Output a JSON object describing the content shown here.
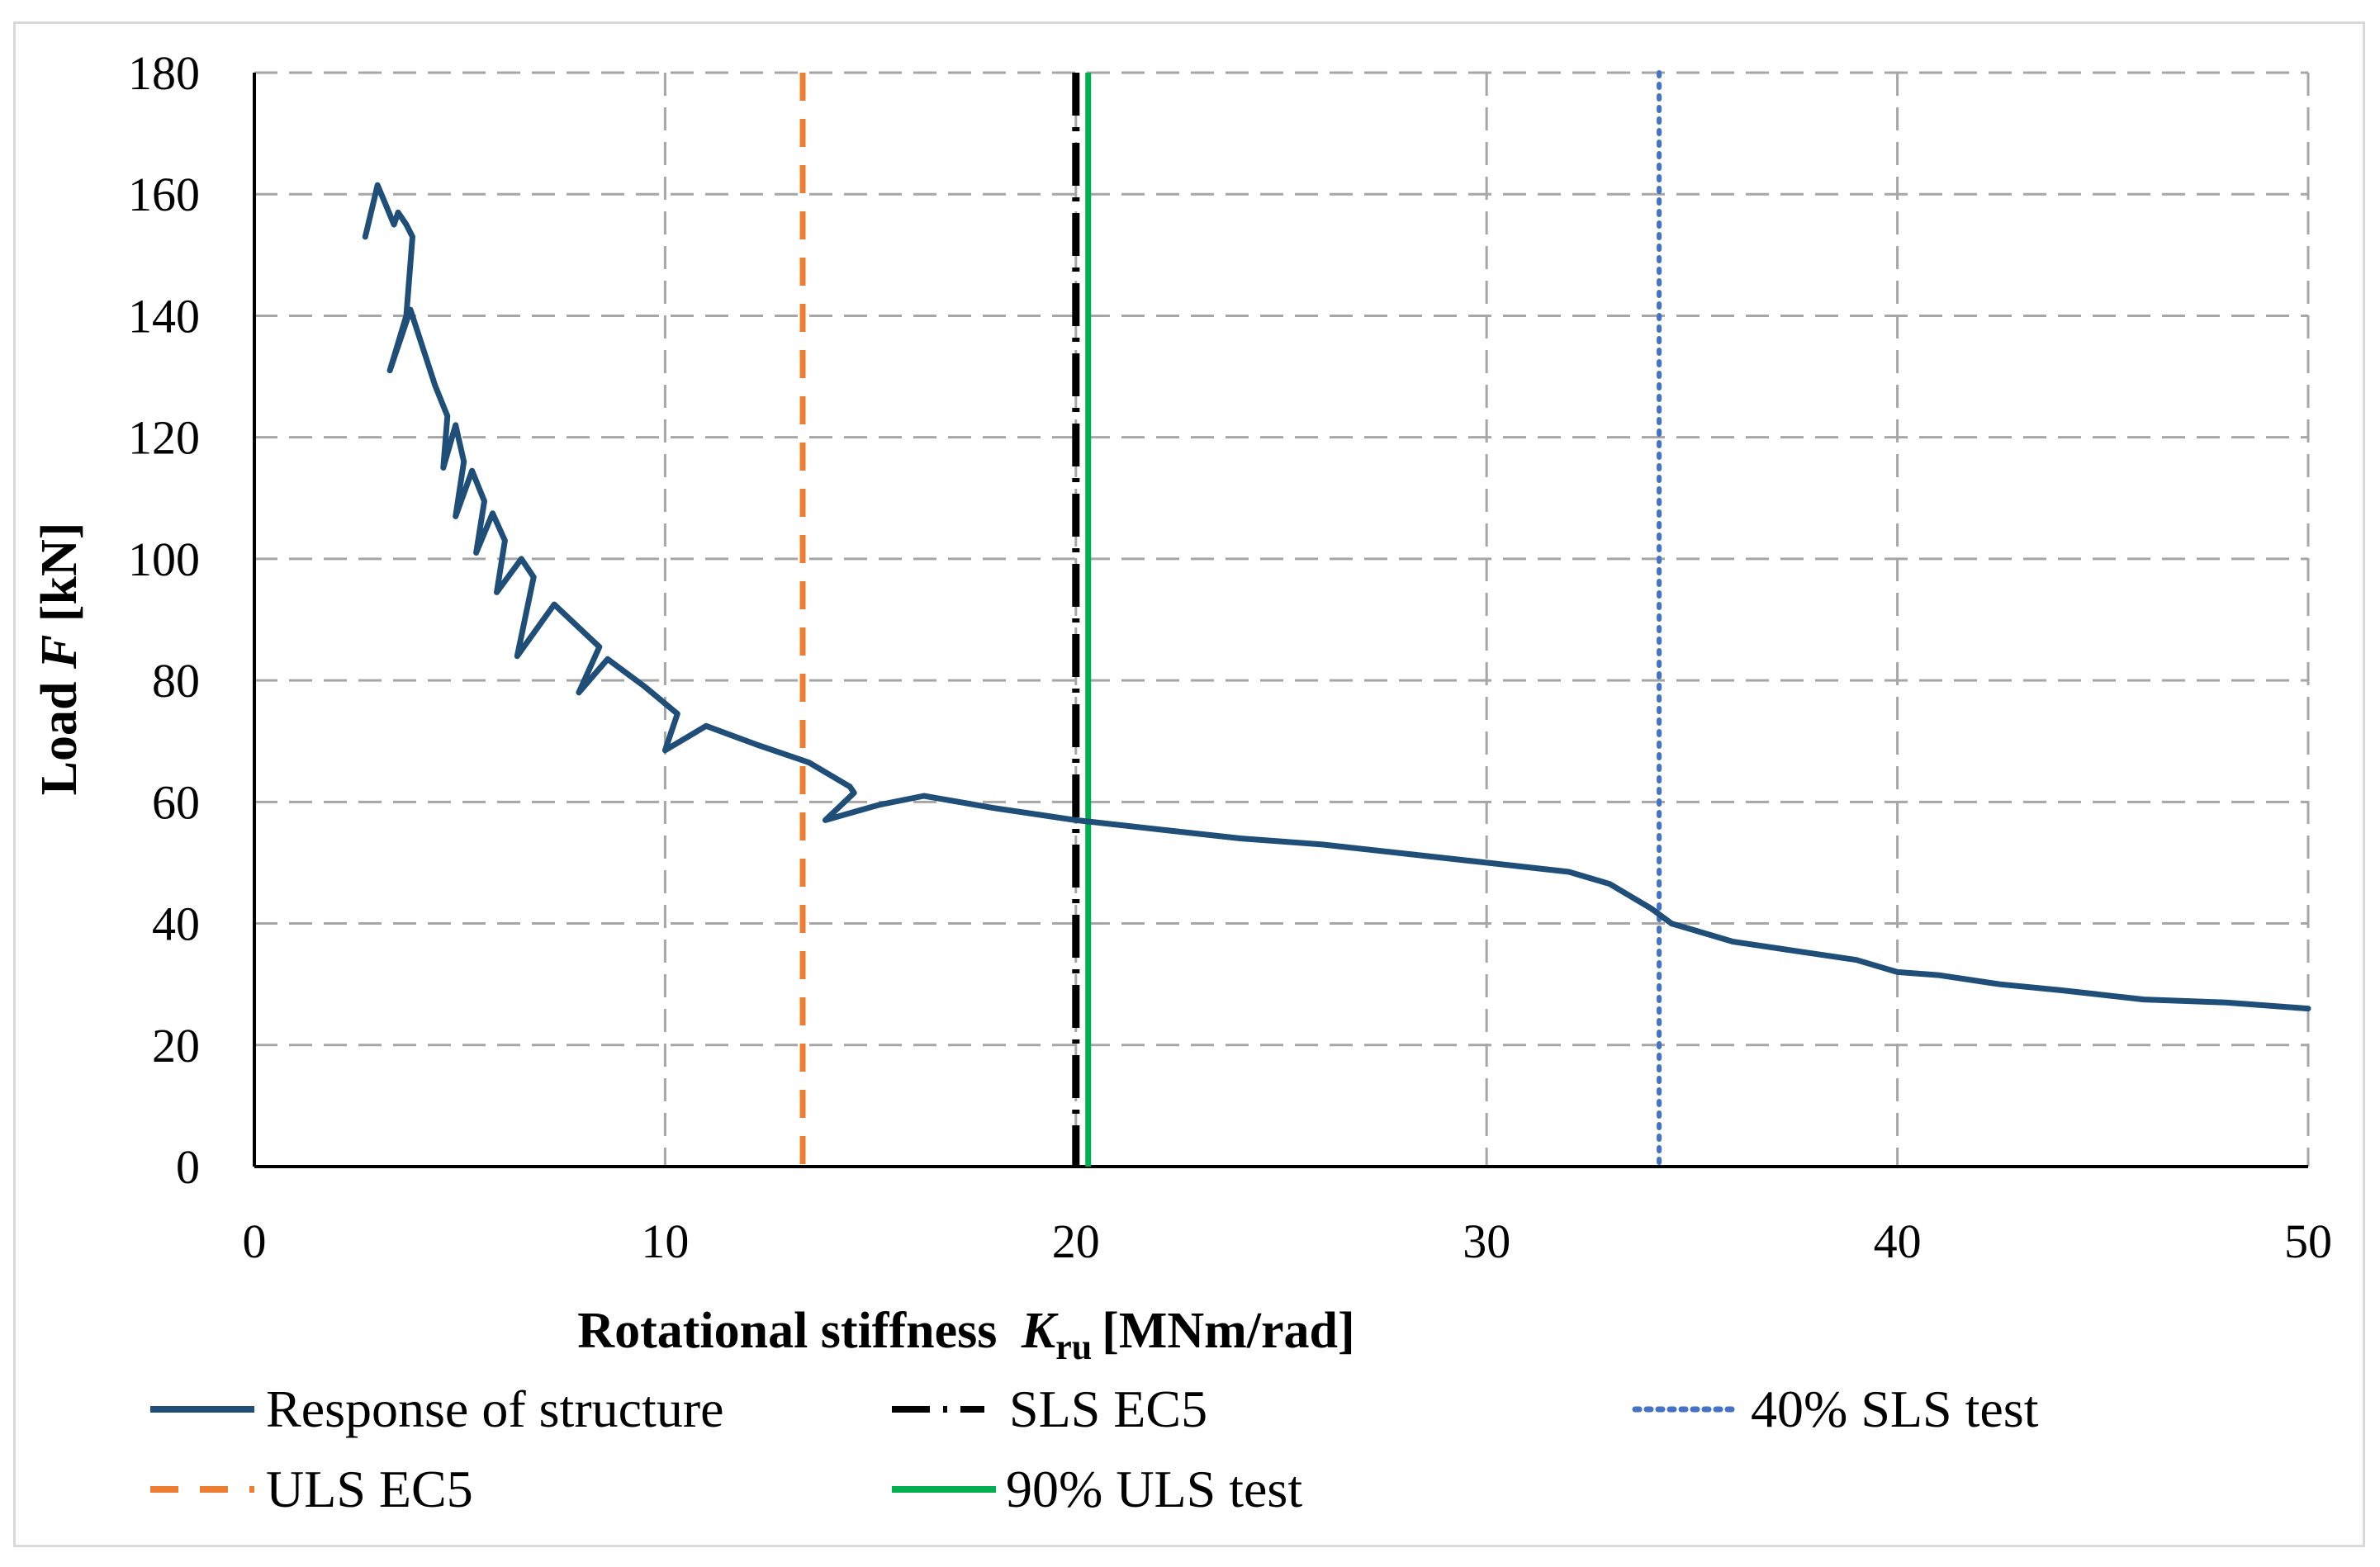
{
  "chart_data": {
    "type": "line",
    "title": "",
    "xlabel": "Rotational stiffness",
    "xlabel_symbol": "K",
    "xlabel_subscript": "ru",
    "xlabel_units": "[MNm/rad]",
    "ylabel": "Load",
    "ylabel_symbol": "F",
    "ylabel_units": "[kN]",
    "xlim": [
      0,
      50
    ],
    "ylim": [
      0,
      180
    ],
    "xticks": [
      0,
      10,
      20,
      30,
      40,
      50
    ],
    "yticks": [
      0,
      20,
      40,
      60,
      80,
      100,
      120,
      140,
      160,
      180
    ],
    "grid": true,
    "legend_position": "bottom",
    "series": [
      {
        "name": "Response of structure",
        "style": "solid",
        "color": "#1f4e79",
        "points": [
          [
            2.7,
            153
          ],
          [
            3.0,
            161.5
          ],
          [
            3.4,
            155
          ],
          [
            3.5,
            157
          ],
          [
            3.7,
            155
          ],
          [
            3.85,
            153
          ],
          [
            3.7,
            140
          ],
          [
            3.3,
            131
          ],
          [
            3.8,
            141
          ],
          [
            4.4,
            128.5
          ],
          [
            4.7,
            123.5
          ],
          [
            4.6,
            115
          ],
          [
            4.9,
            122
          ],
          [
            5.1,
            116
          ],
          [
            4.9,
            107
          ],
          [
            5.3,
            114.5
          ],
          [
            5.6,
            109.5
          ],
          [
            5.4,
            101
          ],
          [
            5.8,
            107.5
          ],
          [
            6.1,
            103
          ],
          [
            5.9,
            94.5
          ],
          [
            6.5,
            100
          ],
          [
            6.8,
            97
          ],
          [
            6.4,
            84
          ],
          [
            7.3,
            92.5
          ],
          [
            8.4,
            85.5
          ],
          [
            7.9,
            78
          ],
          [
            8.6,
            83.5
          ],
          [
            9.5,
            79
          ],
          [
            10.3,
            74.5
          ],
          [
            10.0,
            68.5
          ],
          [
            11.0,
            72.5
          ],
          [
            12.2,
            69.5
          ],
          [
            13.5,
            66.5
          ],
          [
            14.5,
            62.5
          ],
          [
            14.6,
            61.5
          ],
          [
            13.9,
            57
          ],
          [
            15.2,
            59.5
          ],
          [
            16.3,
            61
          ],
          [
            18.0,
            59
          ],
          [
            20.0,
            57
          ],
          [
            22.0,
            55.5
          ],
          [
            24.0,
            54
          ],
          [
            26.0,
            53
          ],
          [
            28.0,
            51.5
          ],
          [
            30.0,
            50
          ],
          [
            32.0,
            48.5
          ],
          [
            33.0,
            46.5
          ],
          [
            34.0,
            42.5
          ],
          [
            34.5,
            40
          ],
          [
            35.0,
            39
          ],
          [
            36.0,
            37
          ],
          [
            37.5,
            35.5
          ],
          [
            39.0,
            34
          ],
          [
            40.0,
            32
          ],
          [
            41.0,
            31.5
          ],
          [
            42.5,
            30
          ],
          [
            44.0,
            29
          ],
          [
            46.0,
            27.5
          ],
          [
            48.0,
            27
          ],
          [
            50.0,
            26
          ]
        ]
      },
      {
        "name": "ULS EC5",
        "style": "dashed",
        "color": "#ed7d31",
        "x": 13.35
      },
      {
        "name": "SLS EC5",
        "style": "dash-dot",
        "color": "#000000",
        "x": 20.0
      },
      {
        "name": "90% ULS test",
        "style": "solid",
        "color": "#00b050",
        "x": 20.3
      },
      {
        "name": "40% SLS test",
        "style": "dotted",
        "color": "#4472c4",
        "x": 34.2
      }
    ]
  }
}
